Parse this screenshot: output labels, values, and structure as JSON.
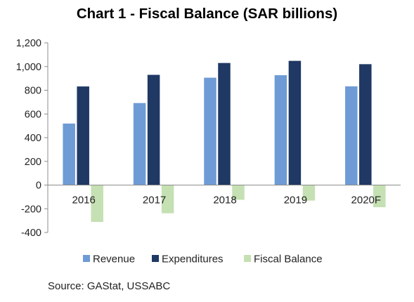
{
  "title": "Chart 1 - Fiscal Balance (SAR billions)",
  "source": "Source: GAStat, USSABC",
  "colors": {
    "revenue": "#6E9BD6",
    "expenditures": "#1F3864",
    "fiscal_balance": "#C5E0B3"
  },
  "chart_data": {
    "type": "bar",
    "categories": [
      "2016",
      "2017",
      "2018",
      "2019",
      "2020F"
    ],
    "series": [
      {
        "name": "Revenue",
        "values": [
          519,
          692,
          906,
          927,
          833
        ]
      },
      {
        "name": "Expenditures",
        "values": [
          832,
          930,
          1030,
          1048,
          1020
        ]
      },
      {
        "name": "Fiscal Balance",
        "values": [
          -311,
          -238,
          -124,
          -131,
          -187
        ]
      }
    ],
    "yticks": [
      "1,200",
      "1,000",
      "800",
      "600",
      "400",
      "200",
      "0",
      "-200",
      "-400"
    ],
    "ylim": [
      -400,
      1200
    ],
    "legend": [
      "Revenue",
      "Expenditures",
      "Fiscal Balance"
    ],
    "legend_position": "bottom",
    "grid": false
  }
}
